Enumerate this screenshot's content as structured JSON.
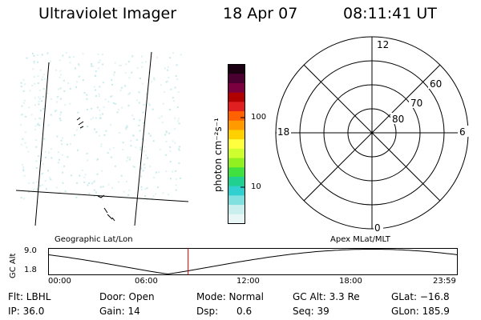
{
  "header": {
    "title": "Ultraviolet Imager",
    "date": "18 Apr 07",
    "time": "08:11:41 UT"
  },
  "colorbar": {
    "unit_label": "photon cm⁻²s⁻¹",
    "ticks": [
      "100",
      "10"
    ],
    "colors": [
      "#1a0010",
      "#4a0030",
      "#7a0040",
      "#b00000",
      "#e02020",
      "#ff6000",
      "#ff9a00",
      "#ffd000",
      "#ffff40",
      "#d0ff30",
      "#90f020",
      "#40e040",
      "#20d090",
      "#30d0d0",
      "#80e0e0",
      "#c8eeee",
      "#e8f6f6"
    ]
  },
  "polar": {
    "mlt_labels": {
      "top": "12",
      "left": "18",
      "right": "6",
      "bottom": "0"
    },
    "lat_labels": [
      "60",
      "70",
      "80"
    ]
  },
  "altitude": {
    "axis_label": "GC Alt",
    "left_title": "Geographic Lat/Lon",
    "right_title": "Apex MLat/MLT",
    "y_ticks": [
      "9.0",
      "1.8"
    ],
    "x_ticks": [
      "00:00",
      "06:00",
      "12:00",
      "18:00",
      "23:59"
    ],
    "marker_time": "08:11:41",
    "marker_color": "#cc0000"
  },
  "info": {
    "row1": [
      "Flt: LBHL",
      "Door: Open",
      "Mode: Normal",
      "GC Alt: 3.3 Re",
      "GLat: −16.8"
    ],
    "row2": [
      "IP: 36.0",
      "Gain: 14",
      "Dsp:      0.6",
      "Seq: 39",
      "GLon: 185.9"
    ]
  }
}
